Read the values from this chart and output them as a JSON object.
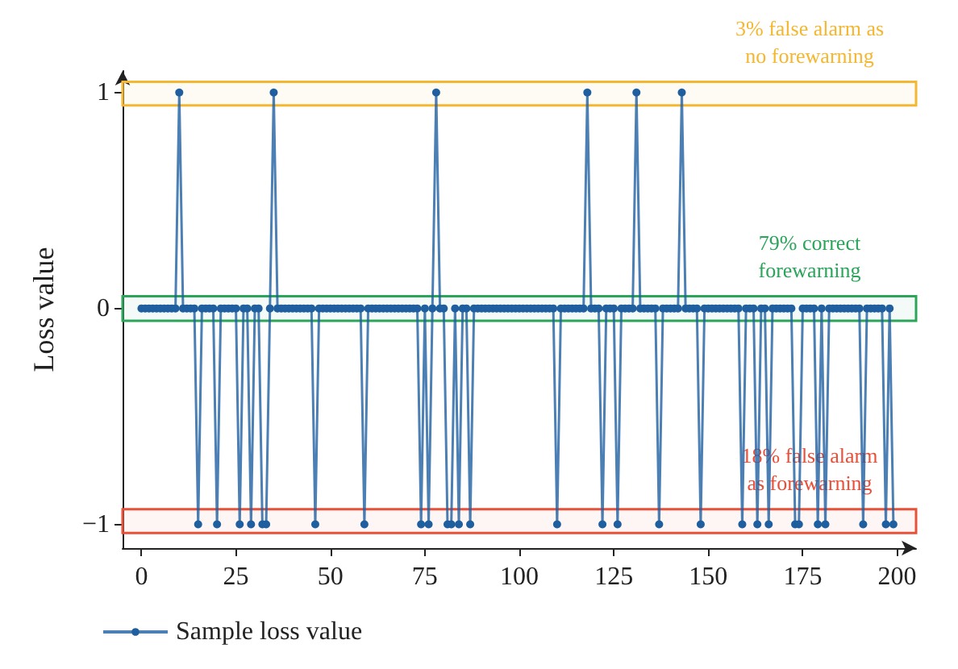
{
  "chart_data": {
    "type": "line",
    "ylabel": "Loss value",
    "xlim": [
      -5,
      205
    ],
    "xticks": [
      0,
      25,
      50,
      75,
      100,
      125,
      150,
      175,
      200
    ],
    "ylim": [
      -1.11,
      1.1
    ],
    "yticks": [
      {
        "value": -1,
        "label": "−1"
      },
      0,
      1
    ],
    "grid": false,
    "legend": "bottom left",
    "marker": "circle",
    "line_style": "solid",
    "x": [
      0,
      1,
      2,
      3,
      4,
      5,
      6,
      7,
      8,
      9,
      10,
      11,
      12,
      13,
      14,
      15,
      16,
      17,
      18,
      19,
      20,
      21,
      22,
      23,
      24,
      25,
      26,
      27,
      28,
      29,
      30,
      31,
      32,
      33,
      34,
      35,
      36,
      37,
      38,
      39,
      40,
      41,
      42,
      43,
      44,
      45,
      46,
      47,
      48,
      49,
      50,
      51,
      52,
      53,
      54,
      55,
      56,
      57,
      58,
      59,
      60,
      61,
      62,
      63,
      64,
      65,
      66,
      67,
      68,
      69,
      70,
      71,
      72,
      73,
      74,
      75,
      76,
      77,
      78,
      79,
      80,
      81,
      82,
      83,
      84,
      85,
      86,
      87,
      88,
      89,
      90,
      91,
      92,
      93,
      94,
      95,
      96,
      97,
      98,
      99,
      100,
      101,
      102,
      103,
      104,
      105,
      106,
      107,
      108,
      109,
      110,
      111,
      112,
      113,
      114,
      115,
      116,
      117,
      118,
      119,
      120,
      121,
      122,
      123,
      124,
      125,
      126,
      127,
      128,
      129,
      130,
      131,
      132,
      133,
      134,
      135,
      136,
      137,
      138,
      139,
      140,
      141,
      142,
      143,
      144,
      145,
      146,
      147,
      148,
      149,
      150,
      151,
      152,
      153,
      154,
      155,
      156,
      157,
      158,
      159,
      160,
      161,
      162,
      163,
      164,
      165,
      166,
      167,
      168,
      169,
      170,
      171,
      172,
      173,
      174,
      175,
      176,
      177,
      178,
      179,
      180,
      181,
      182,
      183,
      184,
      185,
      186,
      187,
      188,
      189,
      190,
      191,
      192,
      193,
      194,
      195,
      196,
      197,
      198,
      199
    ],
    "series": [
      {
        "name": "Sample loss value",
        "color": "#1f5fa0",
        "values": [
          0,
          0,
          0,
          0,
          0,
          0,
          0,
          0,
          0,
          0,
          1,
          0,
          0,
          0,
          0,
          -1,
          0,
          0,
          0,
          0,
          -1,
          0,
          0,
          0,
          0,
          0,
          -1,
          0,
          0,
          -1,
          0,
          0,
          -1,
          -1,
          0,
          1,
          0,
          0,
          0,
          0,
          0,
          0,
          0,
          0,
          0,
          0,
          -1,
          0,
          0,
          0,
          0,
          0,
          0,
          0,
          0,
          0,
          0,
          0,
          0,
          -1,
          0,
          0,
          0,
          0,
          0,
          0,
          0,
          0,
          0,
          0,
          0,
          0,
          0,
          0,
          -1,
          0,
          -1,
          0,
          1,
          0,
          0,
          -1,
          -1,
          0,
          -1,
          0,
          0,
          -1,
          0,
          0,
          0,
          0,
          0,
          0,
          0,
          0,
          0,
          0,
          0,
          0,
          0,
          0,
          0,
          0,
          0,
          0,
          0,
          0,
          0,
          0,
          -1,
          0,
          0,
          0,
          0,
          0,
          0,
          0,
          1,
          0,
          0,
          0,
          -1,
          0,
          0,
          0,
          -1,
          0,
          0,
          0,
          0,
          1,
          0,
          0,
          0,
          0,
          0,
          -1,
          0,
          0,
          0,
          0,
          0,
          1,
          0,
          0,
          0,
          0,
          -1,
          0,
          0,
          0,
          0,
          0,
          0,
          0,
          0,
          0,
          0,
          -1,
          0,
          0,
          0,
          -1,
          0,
          0,
          -1,
          0,
          0,
          0,
          0,
          0,
          0,
          -1,
          -1,
          0,
          0,
          0,
          0,
          -1,
          0,
          -1,
          0,
          0,
          0,
          0,
          0,
          0,
          0,
          0,
          0,
          -1,
          0,
          0,
          0,
          0,
          0,
          -1,
          0,
          -1
        ]
      }
    ],
    "bands": [
      {
        "axis": "y",
        "from": 0.94,
        "to": 1.05,
        "label": "3% false alarm as\nno forewarning",
        "color": "#f5b731"
      },
      {
        "axis": "y",
        "from": -0.057,
        "to": 0.057,
        "label": "79% correct\nforewarning",
        "color": "#2aa55a"
      },
      {
        "axis": "y",
        "from": -1.04,
        "to": -0.93,
        "label": "18% false alarm\nas forewarning",
        "color": "#e8503a"
      }
    ]
  }
}
